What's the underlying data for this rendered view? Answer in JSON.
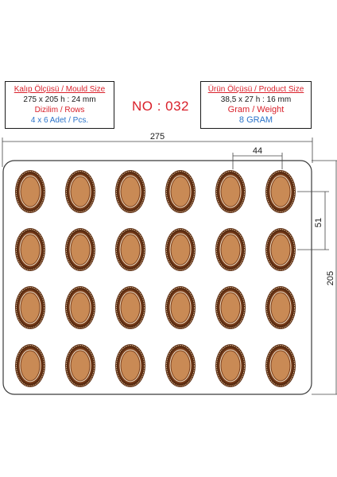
{
  "mould_info": {
    "title": "Kalıp Ölçüsü / Mould Size",
    "size": "275 x 205 h : 24 mm",
    "rows_label": "Dizilim / Rows",
    "rows_value": "4 x 6 Adet / Pcs."
  },
  "model_number": "NO : 032",
  "product_info": {
    "title": "Ürün Ölçüsü / Product Size",
    "size": "38,5 x 27 h : 16 mm",
    "weight_label": "Gram / Weight",
    "weight_value": "8 GRAM"
  },
  "dimensions": {
    "width": "275",
    "height": "205",
    "spacing_x": "44",
    "spacing_y": "51"
  },
  "grid": {
    "rows": 4,
    "cols": 6
  },
  "colors": {
    "tray_outline": "#3a3a3a",
    "chocolate_dark": "#5a2c12",
    "chocolate_rim": "#7a3d1a",
    "chocolate_light": "#c98a55",
    "title_red": "#d9202a",
    "accent_blue": "#2a73c9"
  }
}
